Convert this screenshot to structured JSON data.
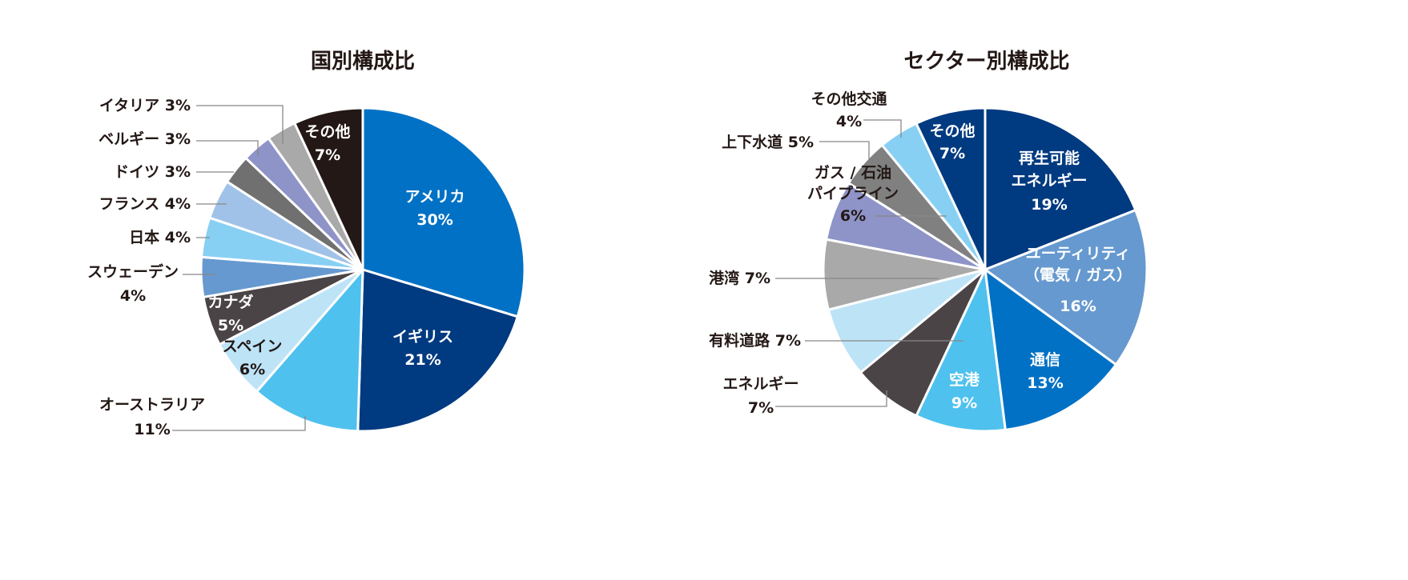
{
  "chart_data": [
    {
      "type": "pie",
      "title": "国別構成比",
      "start": "top",
      "direction": "clockwise",
      "slices": [
        {
          "label": "アメリカ",
          "value": 30,
          "display": "30%",
          "color": "#0071C5"
        },
        {
          "label": "イギリス",
          "value": 21,
          "display": "21%",
          "color": "#003A80"
        },
        {
          "label": "オーストラリア",
          "value": 11,
          "display": "11%",
          "color": "#4FC1EE"
        },
        {
          "label": "スペイン",
          "value": 6,
          "display": "6%",
          "color": "#BDE3F7"
        },
        {
          "label": "カナダ",
          "value": 5,
          "display": "5%",
          "color": "#4A4446"
        },
        {
          "label": "スウェーデン",
          "value": 4,
          "display": "4%",
          "color": "#6699CF"
        },
        {
          "label": "日本",
          "value": 4,
          "display": "4%",
          "color": "#88D0F3"
        },
        {
          "label": "フランス",
          "value": 4,
          "display": "4%",
          "color": "#A1C2E8"
        },
        {
          "label": "ドイツ",
          "value": 3,
          "display": "3%",
          "color": "#707070"
        },
        {
          "label": "ベルギー",
          "value": 3,
          "display": "3%",
          "color": "#8E93C8"
        },
        {
          "label": "イタリア",
          "value": 3,
          "display": "3%",
          "color": "#A9A9A9"
        },
        {
          "label": "その他",
          "value": 7,
          "display": "7%",
          "color": "#231815"
        }
      ]
    },
    {
      "type": "pie",
      "title": "セクター別構成比",
      "start": "top",
      "direction": "clockwise",
      "slices": [
        {
          "label": "再生可能\nエネルギー",
          "value": 19,
          "display": "19%",
          "color": "#003A80"
        },
        {
          "label": "ユーティリティ\n（電気 / ガス）",
          "value": 16,
          "display": "16%",
          "color": "#6699CF"
        },
        {
          "label": "通信",
          "value": 13,
          "display": "13%",
          "color": "#0071C5"
        },
        {
          "label": "空港",
          "value": 9,
          "display": "9%",
          "color": "#4FC1EE"
        },
        {
          "label": "エネルギー",
          "value": 7,
          "display": "7%",
          "color": "#4A4446"
        },
        {
          "label": "有料道路",
          "value": 7,
          "display": "7%",
          "color": "#BDE3F7"
        },
        {
          "label": "港湾",
          "value": 7,
          "display": "7%",
          "color": "#A9A9A9"
        },
        {
          "label": "ガス / 石油\nパイプライン",
          "value": 6,
          "display": "6%",
          "color": "#8E93C8"
        },
        {
          "label": "上下水道",
          "value": 5,
          "display": "5%",
          "color": "#808080"
        },
        {
          "label": "その他交通",
          "value": 4,
          "display": "4%",
          "color": "#88D0F3"
        },
        {
          "label": "その他",
          "value": 7,
          "display": "7%",
          "color": "#003A80"
        }
      ]
    }
  ]
}
